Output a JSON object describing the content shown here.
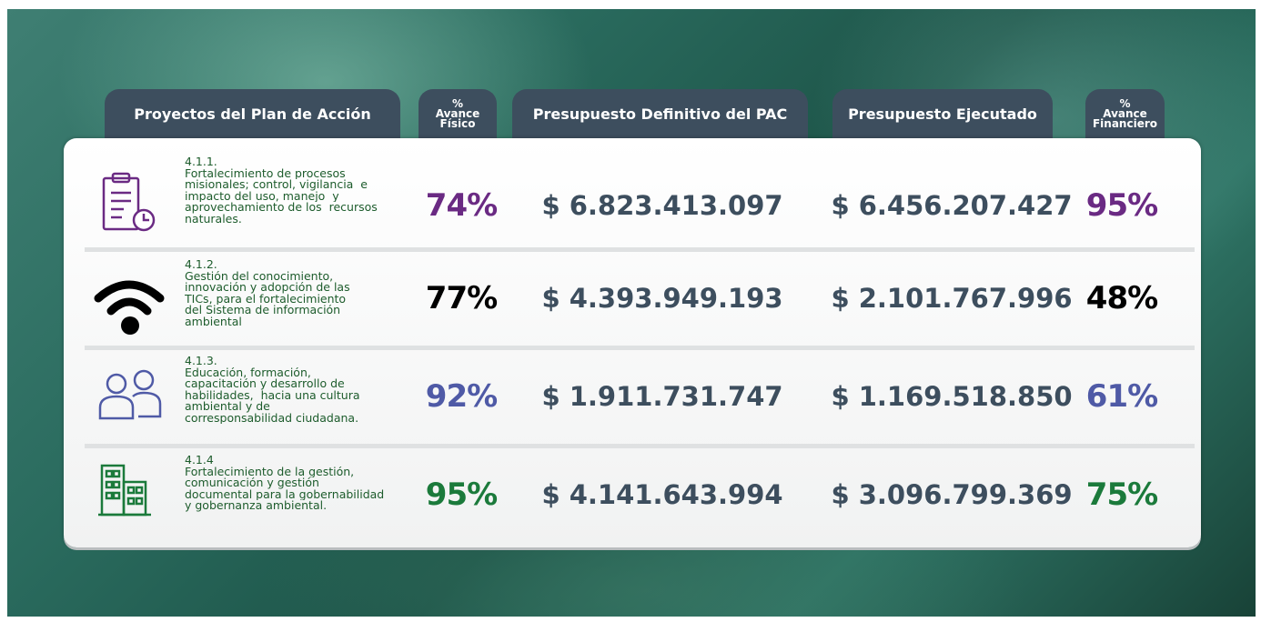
{
  "headers": {
    "proyectos": "Proyectos del Plan de Acción",
    "avance_fisico": [
      "%",
      "Avance",
      "Físico"
    ],
    "presupuesto_definitivo": "Presupuesto Definitivo del PAC",
    "presupuesto_ejecutado": "Presupuesto Ejecutado",
    "avance_financiero": [
      "%",
      "Avance",
      "Financiero"
    ]
  },
  "rows": [
    {
      "code": "4.1.1.",
      "lines": [
        "Fortalecimiento de procesos",
        "misionales; control, vigilancia  e",
        "impacto del uso, manejo  y",
        "aprovechamiento de los  recursos",
        "naturales."
      ],
      "avance_fisico": "74%",
      "presupuesto_definitivo": "$ 6.823.413.097",
      "presupuesto_ejecutado": "$ 6.456.207.427",
      "avance_financiero": "95%",
      "color": "#6a2a83"
    },
    {
      "code": "4.1.2.",
      "lines": [
        "Gestión del conocimiento,",
        "innovación y adopción de las",
        "TICs, para el fortalecimiento",
        "del Sistema de información",
        "ambiental"
      ],
      "avance_fisico": "77%",
      "presupuesto_definitivo": "$ 4.393.949.193",
      "presupuesto_ejecutado": "$ 2.101.767.996",
      "avance_financiero": "48%",
      "color": "#000000"
    },
    {
      "code": "4.1.3.",
      "lines": [
        "Educación, formación,",
        "capacitación y desarrollo de",
        "habilidades,  hacia una cultura",
        "ambiental y de",
        "corresponsabilidad ciudadana."
      ],
      "avance_fisico": "92%",
      "presupuesto_definitivo": "$ 1.911.731.747",
      "presupuesto_ejecutado": "$ 1.169.518.850",
      "avance_financiero": "61%",
      "color": "#4f5aa6"
    },
    {
      "code": "4.1.4",
      "lines": [
        "Fortalecimiento de la gestión,",
        "comunicación y gestión",
        "documental para la gobernabilidad",
        "y gobernanza ambiental."
      ],
      "avance_fisico": "95%",
      "presupuesto_definitivo": "$ 4.141.643.994",
      "presupuesto_ejecutado": "$ 3.096.799.369",
      "avance_financiero": "75%",
      "color": "#1b7a3b"
    }
  ]
}
